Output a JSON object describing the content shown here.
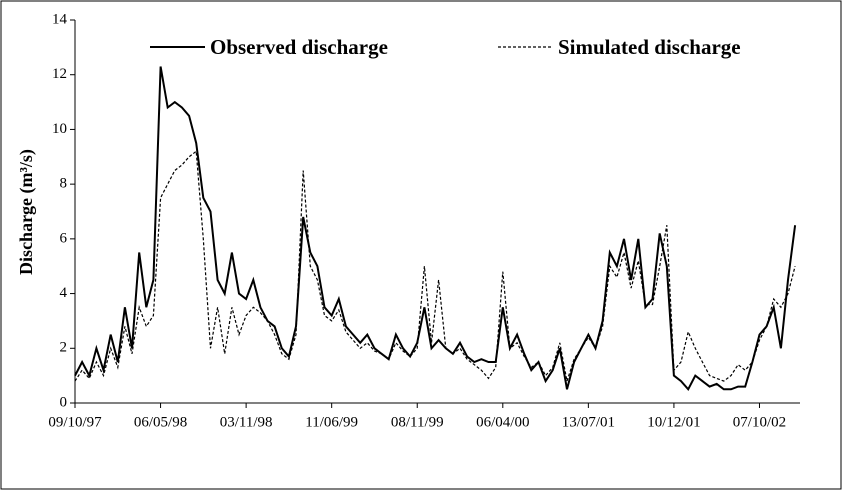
{
  "chart_data": {
    "type": "line",
    "ylabel": "Discharge (m³/s)",
    "categories": [
      "09/10/97",
      null,
      null,
      null,
      null,
      null,
      null,
      null,
      null,
      null,
      null,
      null,
      "06/05/98",
      null,
      null,
      null,
      null,
      null,
      null,
      null,
      null,
      null,
      null,
      null,
      "03/11/98",
      null,
      null,
      null,
      null,
      null,
      null,
      null,
      null,
      null,
      null,
      null,
      "11/06/99",
      null,
      null,
      null,
      null,
      null,
      null,
      null,
      null,
      null,
      null,
      null,
      "08/11/99",
      null,
      null,
      null,
      null,
      null,
      null,
      null,
      null,
      null,
      null,
      null,
      "06/04/00",
      null,
      null,
      null,
      null,
      null,
      null,
      null,
      null,
      null,
      null,
      null,
      "13/07/01",
      null,
      null,
      null,
      null,
      null,
      null,
      null,
      null,
      null,
      null,
      null,
      "10/12/01",
      null,
      null,
      null,
      null,
      null,
      null,
      null,
      null,
      null,
      null,
      null,
      "07/10/02",
      null,
      null,
      null,
      null,
      null
    ],
    "series": [
      {
        "name": "Observed discharge",
        "color": "#000000",
        "dash": "solid",
        "values": [
          1.0,
          1.5,
          1.0,
          2.0,
          1.2,
          2.5,
          1.5,
          3.5,
          2.0,
          5.5,
          3.5,
          4.5,
          12.3,
          10.8,
          11.0,
          10.8,
          10.5,
          9.5,
          7.5,
          7.0,
          4.5,
          4.0,
          5.5,
          4.0,
          3.8,
          4.5,
          3.5,
          3.0,
          2.8,
          2.0,
          1.7,
          2.8,
          6.8,
          5.5,
          5.0,
          3.5,
          3.2,
          3.8,
          2.8,
          2.5,
          2.2,
          2.5,
          2.0,
          1.8,
          1.6,
          2.5,
          2.0,
          1.7,
          2.2,
          3.5,
          2.0,
          2.3,
          2.0,
          1.8,
          2.2,
          1.7,
          1.5,
          1.6,
          1.5,
          1.5,
          3.5,
          2.0,
          2.5,
          1.8,
          1.2,
          1.5,
          0.8,
          1.2,
          2.0,
          0.5,
          1.5,
          2.0,
          2.5,
          2.0,
          3.0,
          5.5,
          5.0,
          6.0,
          4.5,
          6.0,
          3.5,
          3.8,
          6.2,
          5.0,
          1.0,
          0.8,
          0.5,
          1.0,
          0.8,
          0.6,
          0.7,
          0.5,
          0.5,
          0.6,
          0.6,
          1.5,
          2.5,
          2.8,
          3.5,
          2.0,
          4.5,
          6.5
        ]
      },
      {
        "name": "Simulated discharge",
        "color": "#000000",
        "dash": "dashed",
        "values": [
          0.8,
          1.2,
          0.9,
          1.5,
          1.0,
          2.0,
          1.3,
          2.8,
          1.8,
          3.5,
          2.8,
          3.2,
          7.5,
          8.0,
          8.5,
          8.7,
          9.0,
          9.2,
          6.0,
          2.0,
          3.5,
          1.8,
          3.5,
          2.5,
          3.2,
          3.5,
          3.3,
          3.0,
          2.5,
          1.8,
          1.6,
          2.5,
          8.5,
          5.0,
          4.5,
          3.2,
          3.0,
          3.4,
          2.6,
          2.3,
          2.0,
          2.2,
          1.9,
          1.8,
          1.6,
          2.2,
          1.9,
          1.7,
          2.0,
          5.0,
          2.2,
          4.5,
          2.0,
          1.8,
          2.0,
          1.6,
          1.4,
          1.2,
          0.9,
          1.3,
          4.8,
          2.0,
          2.2,
          1.7,
          1.3,
          1.5,
          1.0,
          1.3,
          2.2,
          0.8,
          1.6,
          2.0,
          2.4,
          2.0,
          2.8,
          5.0,
          4.6,
          5.5,
          4.2,
          5.2,
          3.6,
          3.6,
          5.0,
          6.5,
          1.2,
          1.5,
          2.6,
          2.0,
          1.5,
          1.0,
          0.9,
          0.8,
          1.0,
          1.4,
          1.2,
          1.5,
          2.3,
          2.8,
          3.8,
          3.5,
          4.0,
          5.0
        ]
      }
    ],
    "ylim": [
      0,
      14
    ],
    "yticks": [
      0,
      2,
      4,
      6,
      8,
      10,
      12,
      14
    ],
    "legend": "top"
  }
}
